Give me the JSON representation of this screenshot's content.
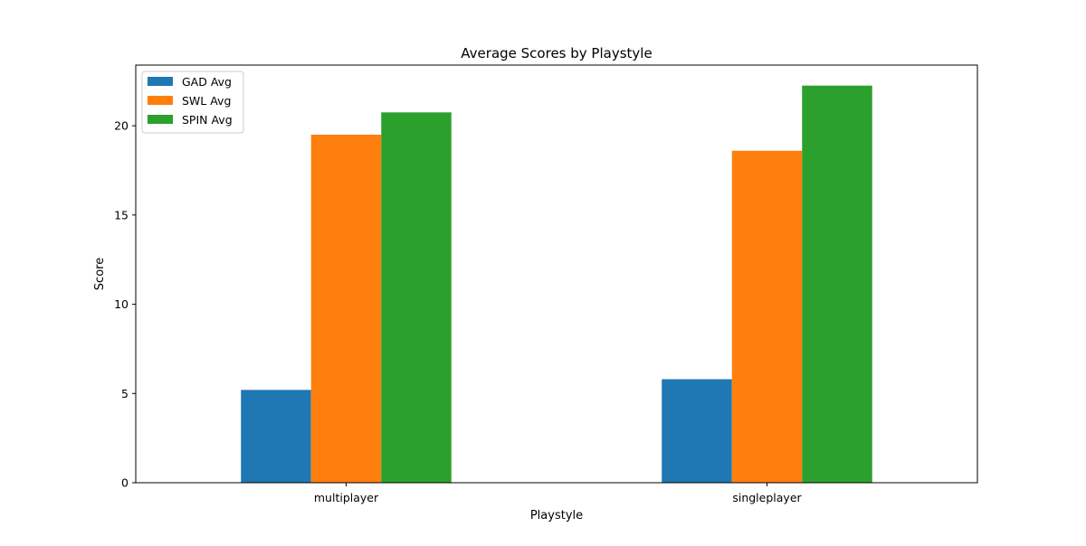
{
  "chart_data": {
    "type": "bar",
    "title": "Average Scores by Playstyle",
    "xlabel": "Playstyle",
    "ylabel": "Score",
    "categories": [
      "multiplayer",
      "singleplayer"
    ],
    "series": [
      {
        "name": "GAD Avg",
        "color": "#1f77b4",
        "values": [
          5.2,
          5.8
        ]
      },
      {
        "name": "SWL Avg",
        "color": "#ff7f0e",
        "values": [
          19.5,
          18.6
        ]
      },
      {
        "name": "SPIN Avg",
        "color": "#2ca02c",
        "values": [
          20.75,
          22.25
        ]
      }
    ],
    "ylim": [
      0,
      23.4
    ],
    "yticks": [
      0,
      5,
      10,
      15,
      20
    ],
    "grid": false,
    "legend_position": "top-left"
  }
}
